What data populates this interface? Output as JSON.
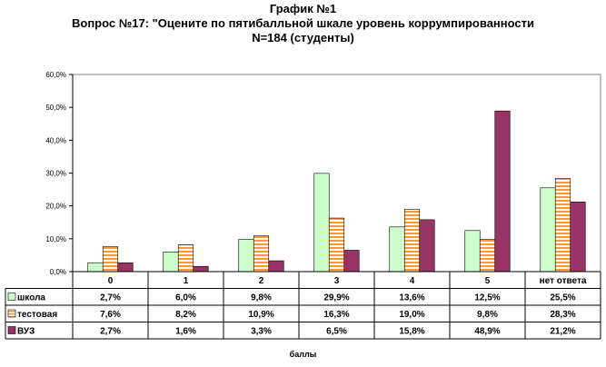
{
  "chart_data": {
    "type": "bar",
    "title": "График №1",
    "subtitle": "Вопрос №17: \"Оцените по пятибалльной шкале уровень коррумпированности",
    "subtitle2": "N=184 (студенты)",
    "xlabel": "баллы",
    "ylabel": "",
    "ylim": [
      0,
      60
    ],
    "yticks": [
      "0,0%",
      "10,0%",
      "20,0%",
      "30,0%",
      "40,0%",
      "50,0%",
      "60,0%"
    ],
    "categories": [
      "0",
      "1",
      "2",
      "3",
      "4",
      "5",
      "нет ответа"
    ],
    "series": [
      {
        "name": "школа",
        "values": [
          2.7,
          6.0,
          9.8,
          29.9,
          13.6,
          12.5,
          25.5
        ],
        "labels": [
          "2,7%",
          "6,0%",
          "9,8%",
          "29,9%",
          "13,6%",
          "12,5%",
          "25,5%"
        ],
        "color": "#ccffcc"
      },
      {
        "name": "тестовая",
        "values": [
          7.6,
          8.2,
          10.9,
          16.3,
          19.0,
          9.8,
          28.3
        ],
        "labels": [
          "7,6%",
          "8,2%",
          "10,9%",
          "16,3%",
          "19,0%",
          "9,8%",
          "28,3%"
        ],
        "color": "#ff9933"
      },
      {
        "name": "ВУЗ",
        "values": [
          2.7,
          1.6,
          3.3,
          6.5,
          15.8,
          48.9,
          21.2
        ],
        "labels": [
          "2,7%",
          "1,6%",
          "3,3%",
          "6,5%",
          "15,8%",
          "48,9%",
          "21,2%"
        ],
        "color": "#993366"
      }
    ],
    "grid": false,
    "legend": "data-table-left"
  }
}
